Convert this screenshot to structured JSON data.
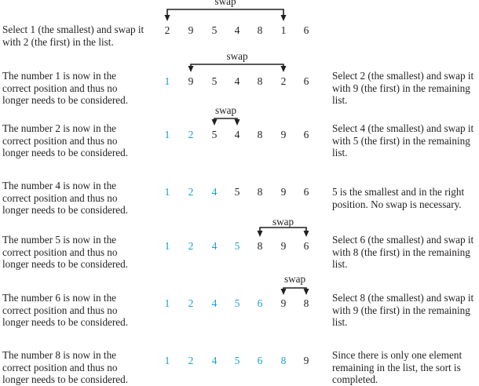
{
  "rows": [
    {
      "left": [
        "Select 1 (the smallest) and swap it",
        "with 2 (the first) in the list."
      ],
      "right": [],
      "numbers": [
        "2",
        "9",
        "5",
        "4",
        "8",
        "1",
        "6"
      ],
      "sorted_count": 0,
      "swap": {
        "label": "swap",
        "from_index": 0,
        "to_index": 5
      }
    },
    {
      "left": [
        "The number 1 is now in the",
        "correct position and thus no",
        "longer needs to be considered."
      ],
      "right": [
        "Select 2 (the smallest) and swap it",
        "with 9 (the first) in the remaining",
        "list."
      ],
      "numbers": [
        "1",
        "9",
        "5",
        "4",
        "8",
        "2",
        "6"
      ],
      "sorted_count": 1,
      "swap": {
        "label": "swap",
        "from_index": 1,
        "to_index": 5
      }
    },
    {
      "left": [
        "The number 2 is now in the",
        "correct position and thus no",
        "longer needs to be considered."
      ],
      "right": [
        "Select 4 (the smallest) and swap it",
        "with 5 (the first) in the remaining",
        "list."
      ],
      "numbers": [
        "1",
        "2",
        "5",
        "4",
        "8",
        "9",
        "6"
      ],
      "sorted_count": 2,
      "swap": {
        "label": "swap",
        "from_index": 2,
        "to_index": 3
      }
    },
    {
      "left": [
        "The number 4 is now in the",
        "correct position and thus no",
        "longer needs to be considered."
      ],
      "right": [
        "5 is the smallest and in the right",
        "position. No swap is necessary."
      ],
      "numbers": [
        "1",
        "2",
        "4",
        "5",
        "8",
        "9",
        "6"
      ],
      "sorted_count": 3,
      "swap": null
    },
    {
      "left": [
        "The number 5 is now in the",
        "correct position and thus no",
        "longer needs to be considered."
      ],
      "right": [
        "Select 6 (the smallest) and swap it",
        "with 8 (the first) in the remaining",
        "list."
      ],
      "numbers": [
        "1",
        "2",
        "4",
        "5",
        "8",
        "9",
        "6"
      ],
      "sorted_count": 4,
      "swap": {
        "label": "swap",
        "from_index": 4,
        "to_index": 6
      }
    },
    {
      "left": [
        "The number 6 is now in the",
        "correct position and thus no",
        "longer needs to be considered."
      ],
      "right": [
        "Select 8 (the smallest) and swap it",
        "with 9 (the first) in the remaining",
        "list."
      ],
      "numbers": [
        "1",
        "2",
        "4",
        "5",
        "6",
        "9",
        "8"
      ],
      "sorted_count": 5,
      "swap": {
        "label": "swap",
        "from_index": 5,
        "to_index": 6
      }
    },
    {
      "left": [
        "The number 8 is now in the",
        "correct position and thus no",
        "longer needs to be considered."
      ],
      "right": [
        "Since there is only one element",
        "remaining in the list, the sort is",
        "completed."
      ],
      "numbers": [
        "1",
        "2",
        "4",
        "5",
        "6",
        "8",
        "9"
      ],
      "sorted_count": 6,
      "swap": null
    }
  ],
  "colors": {
    "sorted": "#1aa0c6",
    "unsorted": "#231f20",
    "text": "#231f20"
  }
}
